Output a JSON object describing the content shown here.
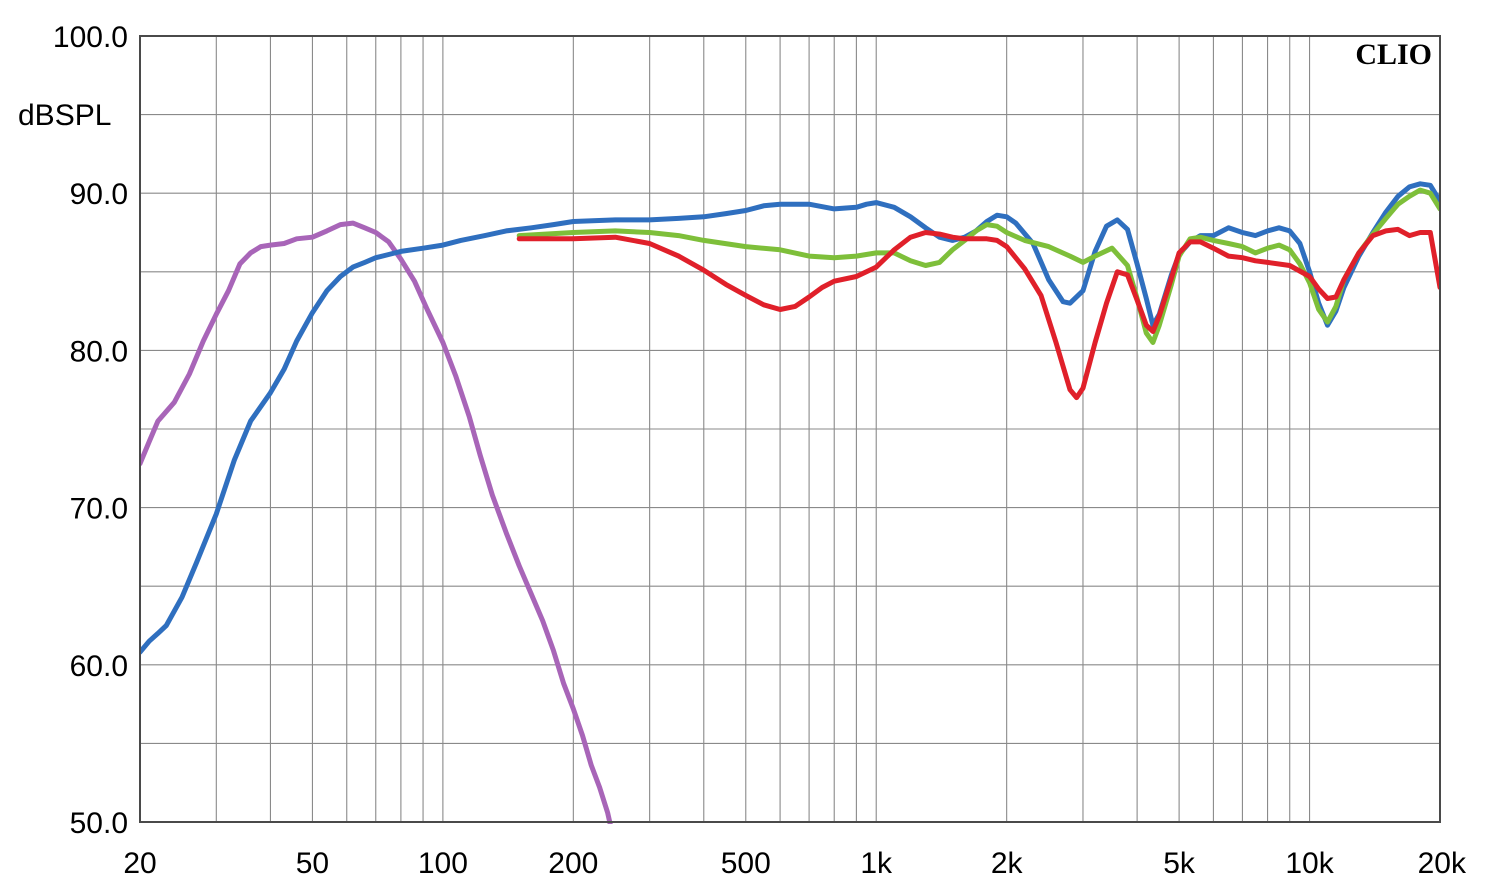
{
  "chart_data": {
    "type": "line",
    "brand": "CLIO",
    "ylabel": "dBSPL",
    "xscale": "log",
    "xlim": [
      20,
      20000
    ],
    "ylim": [
      50,
      100
    ],
    "grid": true,
    "x_ticks": [
      {
        "value": 20,
        "label": "20"
      },
      {
        "value": 50,
        "label": "50"
      },
      {
        "value": 100,
        "label": "100"
      },
      {
        "value": 200,
        "label": "200"
      },
      {
        "value": 500,
        "label": "500"
      },
      {
        "value": 1000,
        "label": "1k"
      },
      {
        "value": 2000,
        "label": "2k"
      },
      {
        "value": 5000,
        "label": "5k"
      },
      {
        "value": 10000,
        "label": "10k"
      },
      {
        "value": 20000,
        "label": "20k"
      }
    ],
    "y_ticks": [
      {
        "value": 100,
        "label": "100.0"
      },
      {
        "value": 90,
        "label": "90.0"
      },
      {
        "value": 80,
        "label": "80.0"
      },
      {
        "value": 70,
        "label": "70.0"
      },
      {
        "value": 60,
        "label": "60.0"
      },
      {
        "value": 50,
        "label": "50.0"
      }
    ],
    "series": [
      {
        "color": "#a865b8",
        "points": [
          [
            20,
            72.8
          ],
          [
            21,
            74.2
          ],
          [
            22,
            75.5
          ],
          [
            24,
            76.7
          ],
          [
            26,
            78.5
          ],
          [
            28,
            80.6
          ],
          [
            30,
            82.3
          ],
          [
            32,
            83.8
          ],
          [
            34,
            85.5
          ],
          [
            36,
            86.2
          ],
          [
            38,
            86.6
          ],
          [
            40,
            86.7
          ],
          [
            43,
            86.8
          ],
          [
            46,
            87.1
          ],
          [
            50,
            87.2
          ],
          [
            54,
            87.6
          ],
          [
            58,
            88.0
          ],
          [
            62,
            88.1
          ],
          [
            66,
            87.8
          ],
          [
            70,
            87.5
          ],
          [
            75,
            86.9
          ],
          [
            80,
            85.8
          ],
          [
            86,
            84.4
          ],
          [
            92,
            82.6
          ],
          [
            100,
            80.5
          ],
          [
            107,
            78.4
          ],
          [
            115,
            75.8
          ],
          [
            122,
            73.3
          ],
          [
            130,
            70.8
          ],
          [
            140,
            68.4
          ],
          [
            150,
            66.3
          ],
          [
            160,
            64.5
          ],
          [
            170,
            62.8
          ],
          [
            180,
            60.9
          ],
          [
            190,
            58.8
          ],
          [
            200,
            57.2
          ],
          [
            210,
            55.5
          ],
          [
            220,
            53.6
          ],
          [
            230,
            52.2
          ],
          [
            240,
            50.6
          ],
          [
            245,
            49.5
          ]
        ]
      },
      {
        "color": "#2f6fbf",
        "points": [
          [
            20,
            60.8
          ],
          [
            21,
            61.5
          ],
          [
            22,
            62.0
          ],
          [
            23,
            62.5
          ],
          [
            25,
            64.3
          ],
          [
            27,
            66.5
          ],
          [
            30,
            69.6
          ],
          [
            33,
            73.0
          ],
          [
            36,
            75.5
          ],
          [
            40,
            77.3
          ],
          [
            43,
            78.8
          ],
          [
            46,
            80.6
          ],
          [
            50,
            82.4
          ],
          [
            54,
            83.8
          ],
          [
            58,
            84.7
          ],
          [
            62,
            85.3
          ],
          [
            66,
            85.6
          ],
          [
            70,
            85.9
          ],
          [
            75,
            86.1
          ],
          [
            80,
            86.3
          ],
          [
            90,
            86.5
          ],
          [
            100,
            86.7
          ],
          [
            110,
            87.0
          ],
          [
            125,
            87.3
          ],
          [
            140,
            87.6
          ],
          [
            160,
            87.8
          ],
          [
            180,
            88.0
          ],
          [
            200,
            88.2
          ],
          [
            250,
            88.3
          ],
          [
            300,
            88.3
          ],
          [
            350,
            88.4
          ],
          [
            400,
            88.5
          ],
          [
            450,
            88.7
          ],
          [
            500,
            88.9
          ],
          [
            550,
            89.2
          ],
          [
            600,
            89.3
          ],
          [
            700,
            89.3
          ],
          [
            800,
            89.0
          ],
          [
            900,
            89.1
          ],
          [
            950,
            89.3
          ],
          [
            1000,
            89.4
          ],
          [
            1100,
            89.1
          ],
          [
            1200,
            88.5
          ],
          [
            1300,
            87.8
          ],
          [
            1400,
            87.2
          ],
          [
            1500,
            87.0
          ],
          [
            1600,
            87.2
          ],
          [
            1700,
            87.6
          ],
          [
            1800,
            88.2
          ],
          [
            1900,
            88.6
          ],
          [
            2000,
            88.5
          ],
          [
            2100,
            88.1
          ],
          [
            2300,
            86.8
          ],
          [
            2500,
            84.5
          ],
          [
            2700,
            83.1
          ],
          [
            2800,
            83.0
          ],
          [
            3000,
            83.8
          ],
          [
            3200,
            86.3
          ],
          [
            3400,
            87.9
          ],
          [
            3600,
            88.3
          ],
          [
            3800,
            87.7
          ],
          [
            4000,
            85.5
          ],
          [
            4200,
            83.3
          ],
          [
            4350,
            81.6
          ],
          [
            4500,
            82.3
          ],
          [
            4800,
            84.8
          ],
          [
            5000,
            86.1
          ],
          [
            5300,
            86.9
          ],
          [
            5600,
            87.3
          ],
          [
            6000,
            87.3
          ],
          [
            6500,
            87.8
          ],
          [
            7000,
            87.5
          ],
          [
            7500,
            87.3
          ],
          [
            8000,
            87.6
          ],
          [
            8500,
            87.8
          ],
          [
            9000,
            87.6
          ],
          [
            9500,
            86.8
          ],
          [
            10000,
            85.0
          ],
          [
            10500,
            83.0
          ],
          [
            11000,
            81.6
          ],
          [
            11500,
            82.5
          ],
          [
            12000,
            84.0
          ],
          [
            13000,
            86.0
          ],
          [
            14000,
            87.5
          ],
          [
            15000,
            88.8
          ],
          [
            16000,
            89.8
          ],
          [
            17000,
            90.4
          ],
          [
            18000,
            90.6
          ],
          [
            19000,
            90.5
          ],
          [
            20000,
            89.5
          ]
        ]
      },
      {
        "color": "#7ebf3a",
        "points": [
          [
            150,
            87.3
          ],
          [
            200,
            87.5
          ],
          [
            250,
            87.6
          ],
          [
            300,
            87.5
          ],
          [
            350,
            87.3
          ],
          [
            400,
            87.0
          ],
          [
            500,
            86.6
          ],
          [
            600,
            86.4
          ],
          [
            700,
            86.0
          ],
          [
            800,
            85.9
          ],
          [
            900,
            86.0
          ],
          [
            1000,
            86.2
          ],
          [
            1100,
            86.2
          ],
          [
            1200,
            85.7
          ],
          [
            1300,
            85.4
          ],
          [
            1400,
            85.6
          ],
          [
            1500,
            86.4
          ],
          [
            1600,
            87.0
          ],
          [
            1700,
            87.6
          ],
          [
            1800,
            88.0
          ],
          [
            1900,
            87.9
          ],
          [
            2000,
            87.5
          ],
          [
            2200,
            87.0
          ],
          [
            2500,
            86.6
          ],
          [
            2800,
            86.0
          ],
          [
            3000,
            85.6
          ],
          [
            3200,
            86.0
          ],
          [
            3500,
            86.5
          ],
          [
            3800,
            85.4
          ],
          [
            4000,
            83.3
          ],
          [
            4200,
            81.1
          ],
          [
            4350,
            80.5
          ],
          [
            4500,
            81.6
          ],
          [
            4800,
            84.2
          ],
          [
            5000,
            86.0
          ],
          [
            5300,
            87.1
          ],
          [
            5600,
            87.2
          ],
          [
            6000,
            87.0
          ],
          [
            6500,
            86.8
          ],
          [
            7000,
            86.6
          ],
          [
            7500,
            86.2
          ],
          [
            8000,
            86.5
          ],
          [
            8500,
            86.7
          ],
          [
            9000,
            86.4
          ],
          [
            9500,
            85.5
          ],
          [
            10000,
            84.3
          ],
          [
            10500,
            82.6
          ],
          [
            11000,
            81.8
          ],
          [
            11500,
            82.8
          ],
          [
            12000,
            84.5
          ],
          [
            13000,
            86.2
          ],
          [
            14000,
            87.4
          ],
          [
            15000,
            88.4
          ],
          [
            16000,
            89.3
          ],
          [
            17000,
            89.8
          ],
          [
            18000,
            90.2
          ],
          [
            19000,
            90.0
          ],
          [
            20000,
            89.0
          ]
        ]
      },
      {
        "color": "#e0202a",
        "points": [
          [
            150,
            87.1
          ],
          [
            200,
            87.1
          ],
          [
            250,
            87.2
          ],
          [
            300,
            86.8
          ],
          [
            350,
            86.0
          ],
          [
            400,
            85.1
          ],
          [
            450,
            84.2
          ],
          [
            500,
            83.5
          ],
          [
            550,
            82.9
          ],
          [
            600,
            82.6
          ],
          [
            650,
            82.8
          ],
          [
            700,
            83.4
          ],
          [
            750,
            84.0
          ],
          [
            800,
            84.4
          ],
          [
            900,
            84.7
          ],
          [
            1000,
            85.3
          ],
          [
            1100,
            86.4
          ],
          [
            1200,
            87.2
          ],
          [
            1300,
            87.5
          ],
          [
            1400,
            87.4
          ],
          [
            1500,
            87.2
          ],
          [
            1600,
            87.1
          ],
          [
            1700,
            87.1
          ],
          [
            1800,
            87.1
          ],
          [
            1900,
            87.0
          ],
          [
            2000,
            86.6
          ],
          [
            2200,
            85.2
          ],
          [
            2400,
            83.5
          ],
          [
            2600,
            80.5
          ],
          [
            2800,
            77.5
          ],
          [
            2900,
            77.0
          ],
          [
            3000,
            77.6
          ],
          [
            3200,
            80.5
          ],
          [
            3400,
            83.0
          ],
          [
            3600,
            85.0
          ],
          [
            3800,
            84.8
          ],
          [
            4000,
            83.2
          ],
          [
            4200,
            81.6
          ],
          [
            4350,
            81.2
          ],
          [
            4500,
            82.2
          ],
          [
            4800,
            84.6
          ],
          [
            5000,
            86.2
          ],
          [
            5300,
            86.9
          ],
          [
            5600,
            86.9
          ],
          [
            6000,
            86.5
          ],
          [
            6500,
            86.0
          ],
          [
            7000,
            85.9
          ],
          [
            7500,
            85.7
          ],
          [
            8000,
            85.6
          ],
          [
            9000,
            85.4
          ],
          [
            10000,
            84.7
          ],
          [
            10500,
            83.9
          ],
          [
            11000,
            83.3
          ],
          [
            11500,
            83.4
          ],
          [
            12000,
            84.5
          ],
          [
            13000,
            86.2
          ],
          [
            14000,
            87.3
          ],
          [
            15000,
            87.6
          ],
          [
            16000,
            87.7
          ],
          [
            17000,
            87.3
          ],
          [
            18000,
            87.5
          ],
          [
            19000,
            87.5
          ],
          [
            20000,
            84.0
          ]
        ]
      }
    ]
  }
}
